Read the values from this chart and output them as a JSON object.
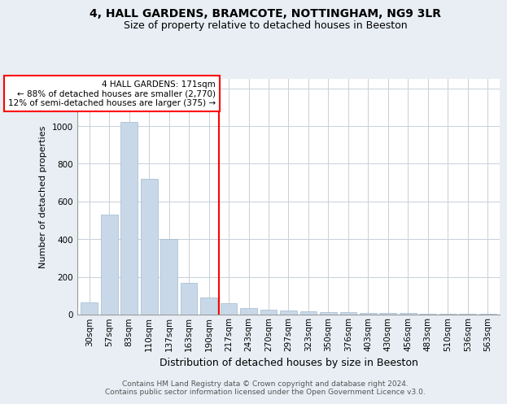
{
  "title_line1": "4, HALL GARDENS, BRAMCOTE, NOTTINGHAM, NG9 3LR",
  "title_line2": "Size of property relative to detached houses in Beeston",
  "xlabel": "Distribution of detached houses by size in Beeston",
  "ylabel": "Number of detached properties",
  "categories": [
    "30sqm",
    "57sqm",
    "83sqm",
    "110sqm",
    "137sqm",
    "163sqm",
    "190sqm",
    "217sqm",
    "243sqm",
    "270sqm",
    "297sqm",
    "323sqm",
    "350sqm",
    "376sqm",
    "403sqm",
    "430sqm",
    "456sqm",
    "483sqm",
    "510sqm",
    "536sqm",
    "563sqm"
  ],
  "values": [
    65,
    530,
    1020,
    720,
    400,
    170,
    90,
    60,
    35,
    25,
    20,
    18,
    15,
    12,
    10,
    8,
    7,
    6,
    5,
    4,
    3
  ],
  "bar_color": "#c8d8e8",
  "bar_edgecolor": "#a0b8cc",
  "vline_color": "red",
  "vline_x": 6.5,
  "annotation_text": "4 HALL GARDENS: 171sqm\n← 88% of detached houses are smaller (2,770)\n12% of semi-detached houses are larger (375) →",
  "annotation_box_facecolor": "white",
  "annotation_box_edgecolor": "red",
  "ylim": [
    0,
    1250
  ],
  "yticks": [
    0,
    200,
    400,
    600,
    800,
    1000,
    1200
  ],
  "footer_text": "Contains HM Land Registry data © Crown copyright and database right 2024.\nContains public sector information licensed under the Open Government Licence v3.0.",
  "background_color": "#e8eef4",
  "plot_background_color": "white",
  "grid_color": "#c8d0d8",
  "title1_fontsize": 10,
  "title2_fontsize": 9,
  "ylabel_fontsize": 8,
  "xlabel_fontsize": 9,
  "tick_fontsize": 7.5,
  "footer_fontsize": 6.5
}
